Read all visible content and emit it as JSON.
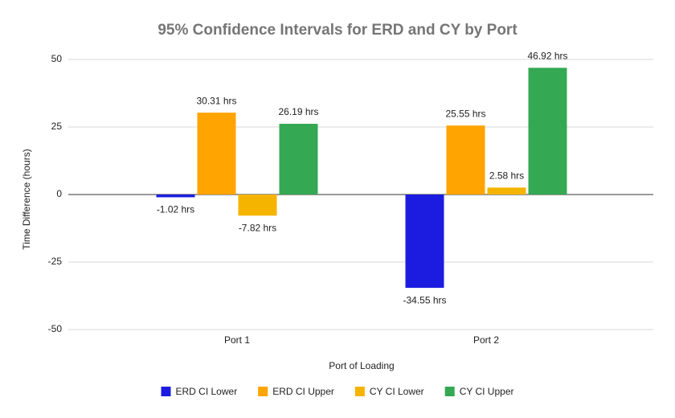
{
  "chart_data": {
    "type": "bar",
    "title": "95% Confidence Intervals for ERD and CY by Port",
    "x_label": "Port of Loading",
    "y_label": "Time Difference (hours)",
    "categories": [
      "Port 1",
      "Port 2"
    ],
    "series": [
      {
        "name": "ERD CI Lower",
        "color": "#1c1ce0",
        "values": [
          -1.02,
          -34.55
        ],
        "value_labels": [
          "-1.02 hrs",
          "-34.55 hrs"
        ]
      },
      {
        "name": "ERD CI Upper",
        "color": "#ffa400",
        "values": [
          30.31,
          25.55
        ],
        "value_labels": [
          "30.31 hrs",
          "25.55 hrs"
        ]
      },
      {
        "name": "CY CI Lower",
        "color": "#f5b400",
        "values": [
          -7.82,
          2.58
        ],
        "value_labels": [
          "-7.82 hrs",
          "2.58 hrs"
        ]
      },
      {
        "name": "CY CI Upper",
        "color": "#34a853",
        "values": [
          26.19,
          46.92
        ],
        "value_labels": [
          "26.19 hrs",
          "46.92 hrs"
        ]
      }
    ],
    "ylim": [
      -50,
      50
    ],
    "yticks": [
      50,
      25,
      0,
      -25,
      -50
    ],
    "grid": true,
    "legend": "bottom"
  }
}
